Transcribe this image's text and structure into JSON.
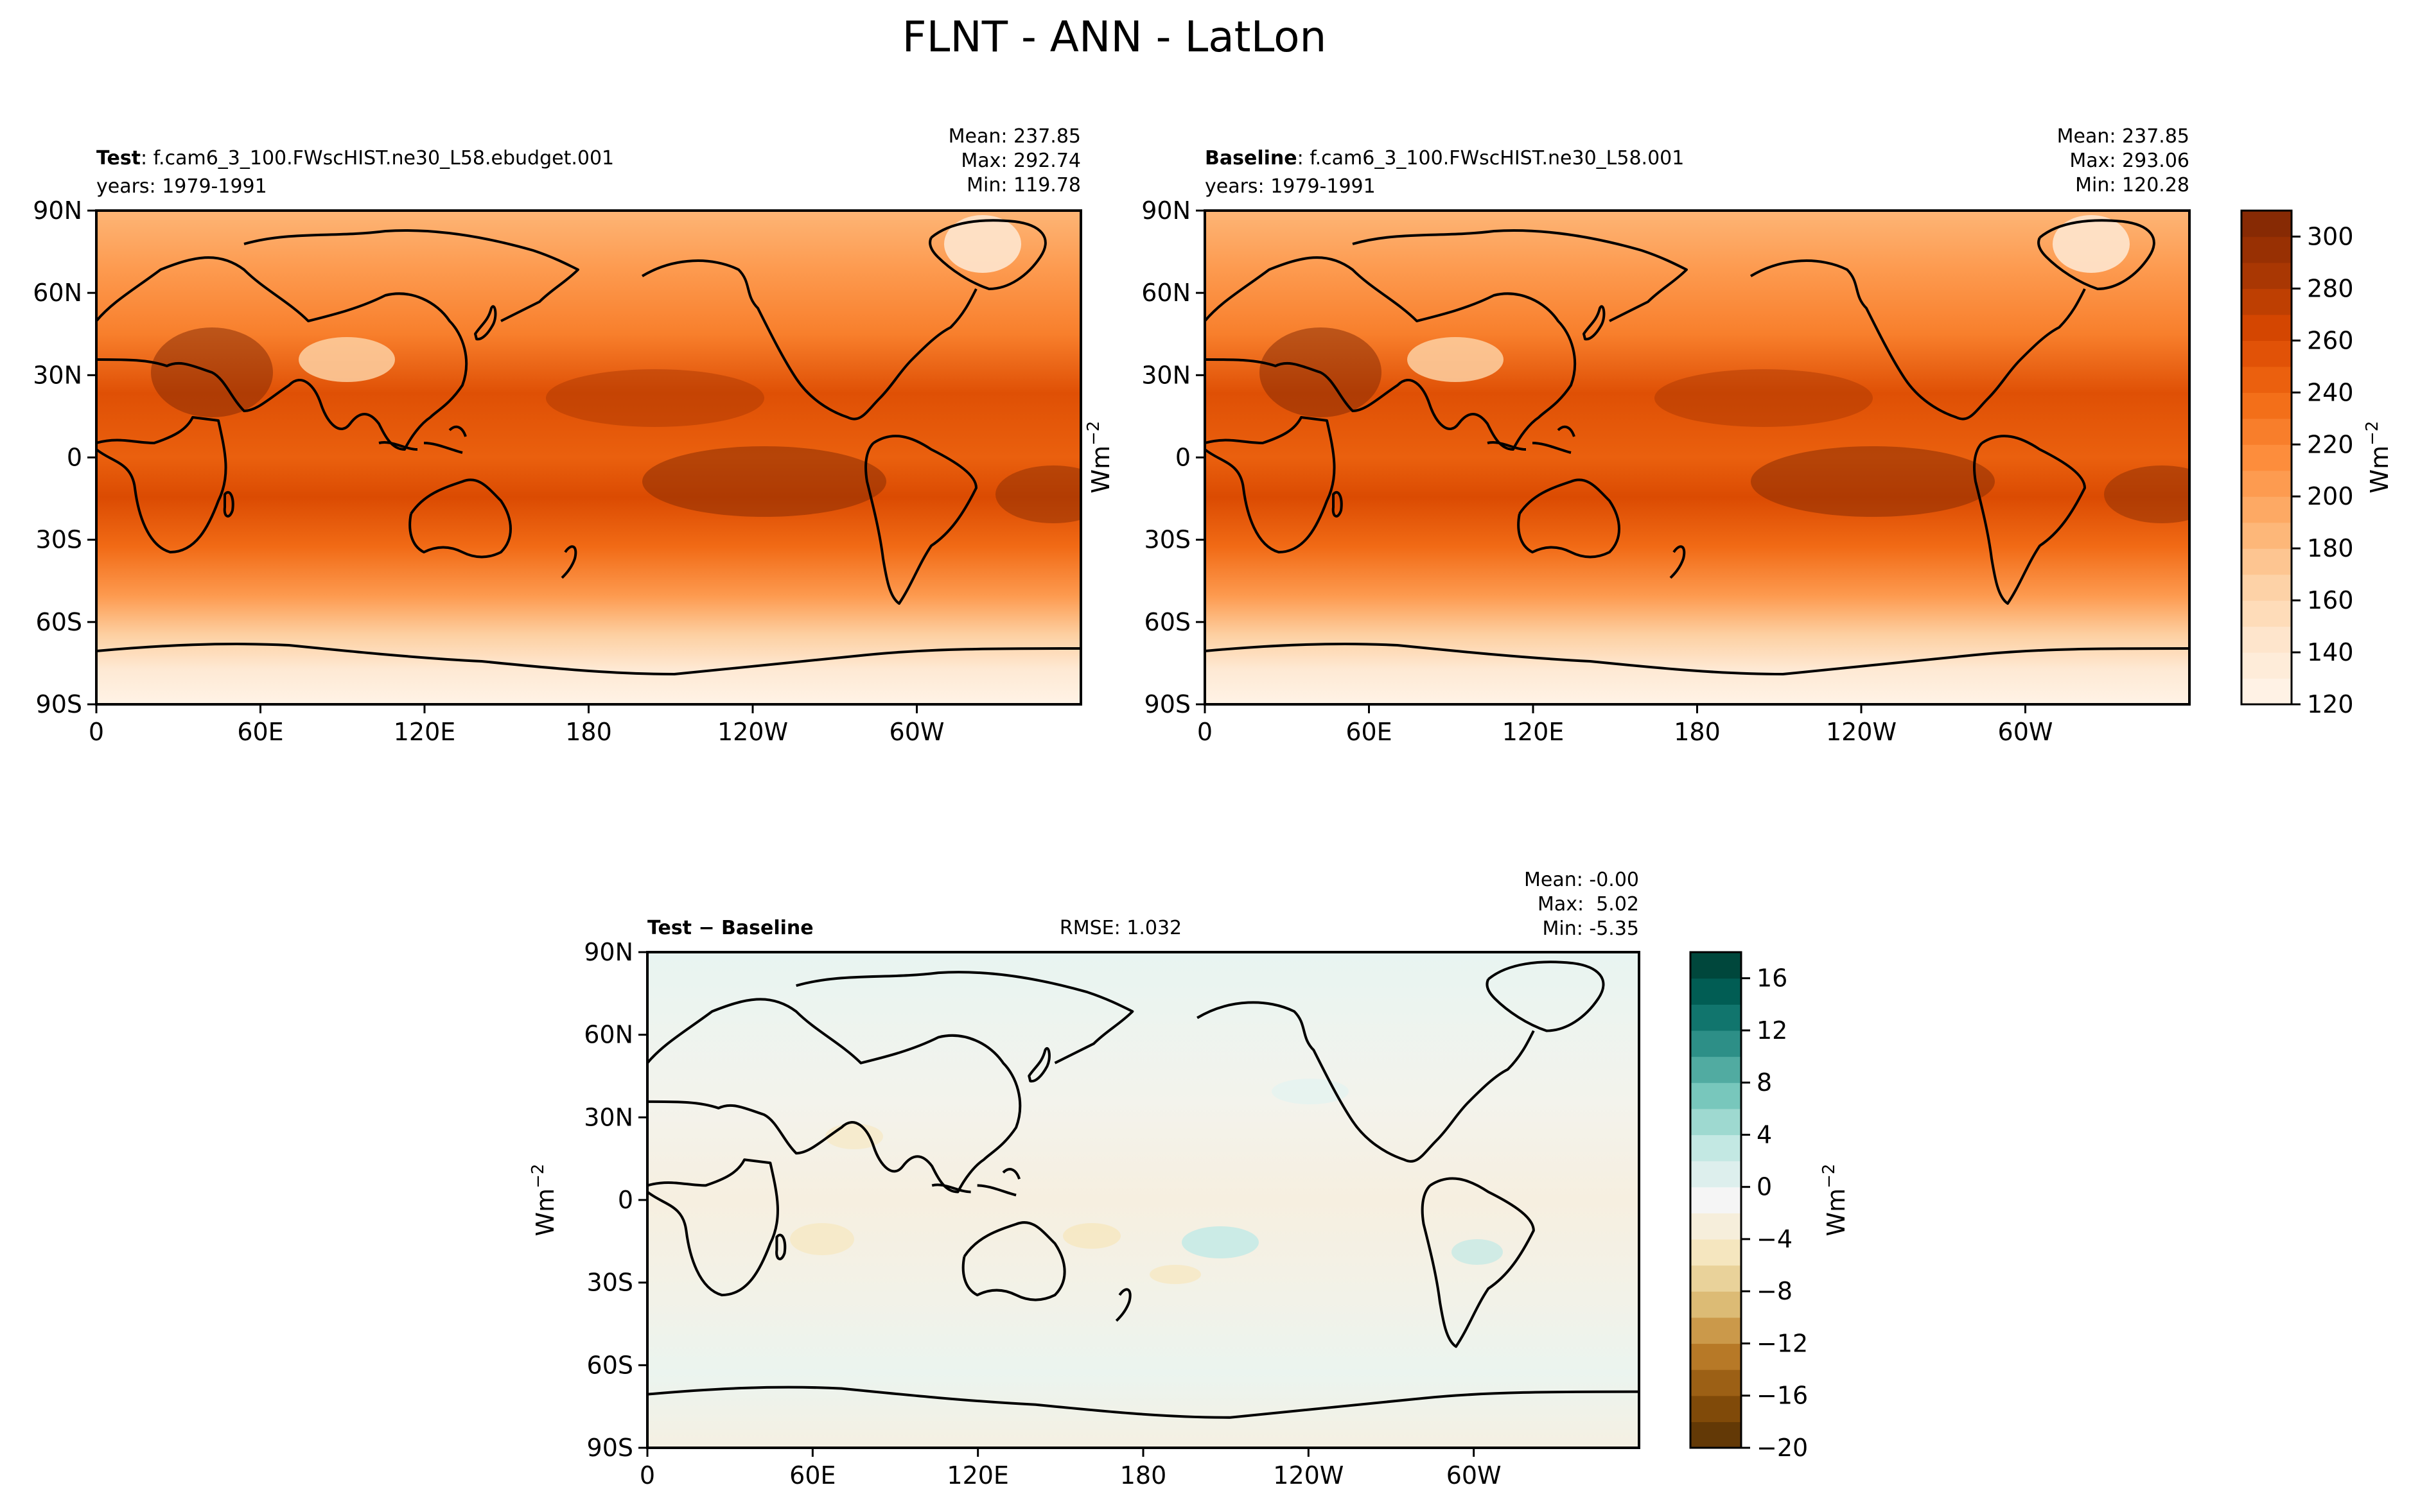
{
  "figure": {
    "title": "FLNT - ANN - LatLon"
  },
  "lon_ticks": [
    "0",
    "60E",
    "120E",
    "180",
    "120W",
    "60W"
  ],
  "lat_ticks": [
    "90N",
    "60N",
    "30N",
    "0",
    "30S",
    "60S",
    "90S"
  ],
  "chart_data": [
    {
      "type": "heatmap",
      "panel": "test",
      "label_bold": "Test",
      "label_rest": ": f.cam6_3_100.FWscHIST.ne30_L58.ebudget.001",
      "years": "years: 1979-1991",
      "stats": [
        "Mean: 237.85",
        "Max: 292.74",
        "Min: 119.78"
      ],
      "xlim": [
        0,
        360
      ],
      "ylim": [
        -90,
        90
      ],
      "colormap": "Oranges"
    },
    {
      "type": "heatmap",
      "panel": "baseline",
      "label_bold": "Baseline",
      "label_rest": ": f.cam6_3_100.FWscHIST.ne30_L58.001",
      "years": "years: 1979-1991",
      "stats": [
        "Mean: 237.85",
        "Max: 293.06",
        "Min: 120.28"
      ],
      "xlim": [
        0,
        360
      ],
      "ylim": [
        -90,
        90
      ],
      "colormap": "Oranges",
      "colorbar": {
        "label": "Wm",
        "label_exp": "−2",
        "range": [
          120,
          310
        ],
        "ticks": [
          120,
          140,
          160,
          180,
          200,
          220,
          240,
          260,
          280,
          300
        ],
        "levels": 19
      }
    },
    {
      "type": "heatmap",
      "panel": "diff",
      "label_bold": "Test − Baseline",
      "rmse": "RMSE: 1.032",
      "stats": [
        "Mean: -0.00",
        "Max:  5.02",
        "Min: -5.35"
      ],
      "xlim": [
        0,
        360
      ],
      "ylim": [
        -90,
        90
      ],
      "colormap": "BrBG",
      "ylabel": "Wm",
      "ylabel_exp": "−2",
      "colorbar": {
        "label": "Wm",
        "label_exp": "−2",
        "range": [
          -20,
          18
        ],
        "ticks": [
          -20,
          -16,
          -12,
          -8,
          -4,
          0,
          4,
          8,
          12,
          16
        ],
        "levels": 19
      }
    }
  ],
  "colors": {
    "oranges": [
      "#fff5eb",
      "#fee6ce",
      "#fdd0a2",
      "#fdae6b",
      "#fd8d3c",
      "#f16913",
      "#d94801",
      "#a63603",
      "#7f2704"
    ],
    "brbg": [
      "#543005",
      "#8c510a",
      "#bf812d",
      "#dfc27d",
      "#f6e8c3",
      "#f5f5f5",
      "#c7eae5",
      "#80cdc1",
      "#35978f",
      "#01665e",
      "#003c30"
    ]
  }
}
